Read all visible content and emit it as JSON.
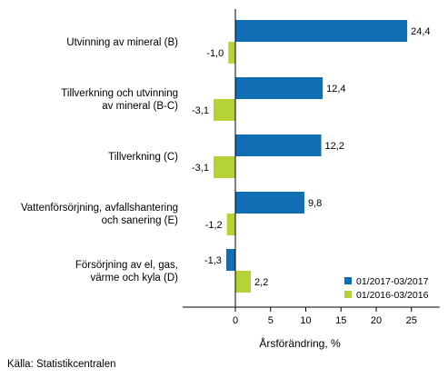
{
  "chart_data": {
    "type": "bar",
    "orientation": "horizontal",
    "title": "",
    "xlabel": "Årsförändring, %",
    "ylabel": "",
    "xlim": [
      -7.5,
      29
    ],
    "xticks": [
      0,
      5,
      10,
      15,
      20,
      25
    ],
    "grid": false,
    "legend_position": "bottom-right",
    "categories": [
      [
        "Utvinning av mineral (B)"
      ],
      [
        "Tillverkning och utvinning",
        "av mineral (B-C)"
      ],
      [
        "Tillverkning (C)"
      ],
      [
        "Vattenförsörjning, avfallshantering",
        "och sanering (E)"
      ],
      [
        "Försörjning av el, gas,",
        "värme och kyla (D)"
      ]
    ],
    "series": [
      {
        "name": "01/2017-03/2017",
        "color": "#0f6eb4",
        "values": [
          24.4,
          12.4,
          12.2,
          9.8,
          -1.3
        ],
        "labels": [
          "24,4",
          "12,4",
          "12,2",
          "9,8",
          "-1,3"
        ]
      },
      {
        "name": "01/2016-03/2016",
        "color": "#b5d335",
        "values": [
          -1.0,
          -3.1,
          -3.1,
          -1.2,
          2.2
        ],
        "labels": [
          "-1,0",
          "-3,1",
          "-3,1",
          "-1,2",
          "2,2"
        ]
      }
    ]
  },
  "source": "Källa: Statistikcentralen"
}
